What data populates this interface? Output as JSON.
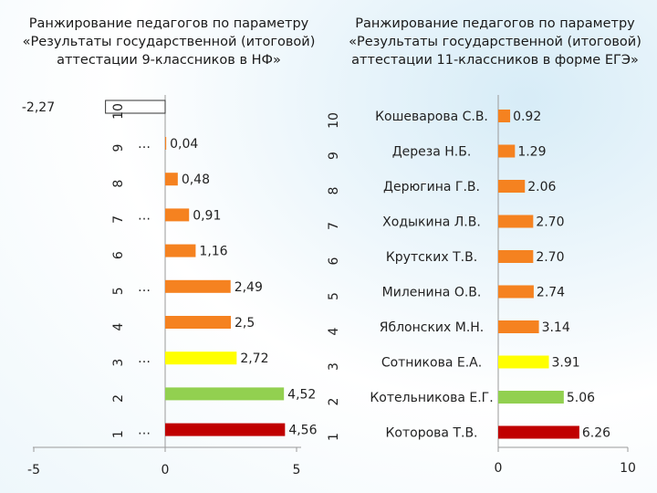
{
  "chart_data": [
    {
      "type": "bar",
      "orientation": "horizontal",
      "title": "Ранжирование педагогов по параметру «Результаты государственной (итоговой) аттестации 9-классников в НФ»",
      "categories": [
        "10",
        "9",
        "8",
        "7",
        "6",
        "5",
        "4",
        "3",
        "2",
        "1"
      ],
      "row_names": [
        "",
        "…",
        "",
        "…",
        "",
        "…",
        "",
        "…",
        "",
        "…"
      ],
      "values": [
        -2.27,
        0.04,
        0.48,
        0.91,
        1.16,
        2.49,
        2.5,
        2.72,
        4.52,
        4.56
      ],
      "value_labels": [
        "-2,27",
        "0,04",
        "0,48",
        "0,91",
        "1,16",
        "2,49",
        "2,5",
        "2,72",
        "4,52",
        "4,56"
      ],
      "colors": [
        "#ffffff",
        "#f58220",
        "#f58220",
        "#f58220",
        "#f58220",
        "#f58220",
        "#f58220",
        "#ffff00",
        "#92d050",
        "#c00000"
      ],
      "xlim": [
        -5,
        5
      ],
      "xticks": [
        "-5",
        "0",
        "5"
      ]
    },
    {
      "type": "bar",
      "orientation": "horizontal",
      "title": "Ранжирование педагогов по параметру «Результаты государственной (итоговой) аттестации 11-классников в форме ЕГЭ»",
      "categories": [
        "10",
        "9",
        "8",
        "7",
        "6",
        "5",
        "4",
        "3",
        "2",
        "1"
      ],
      "row_names": [
        "Кошеварова С.В.",
        "Дереза Н.Б.",
        "Дерюгина Г.В.",
        "Ходыкина Л.В.",
        "Крутских Т.В.",
        "Миленина О.В.",
        "Яблонских М.Н.",
        "Сотникова Е.А.",
        "Котельникова Е.Г.",
        "Которова Т.В."
      ],
      "values": [
        0.92,
        1.29,
        2.06,
        2.7,
        2.7,
        2.74,
        3.14,
        3.91,
        5.06,
        6.26
      ],
      "value_labels": [
        "0.92",
        "1.29",
        "2.06",
        "2.70",
        "2.70",
        "2.74",
        "3.14",
        "3.91",
        "5.06",
        "6.26"
      ],
      "colors": [
        "#f58220",
        "#f58220",
        "#f58220",
        "#f58220",
        "#f58220",
        "#f58220",
        "#f58220",
        "#ffff00",
        "#92d050",
        "#c00000"
      ],
      "xlim": [
        0,
        10
      ],
      "xticks": [
        "0",
        "10"
      ]
    }
  ]
}
